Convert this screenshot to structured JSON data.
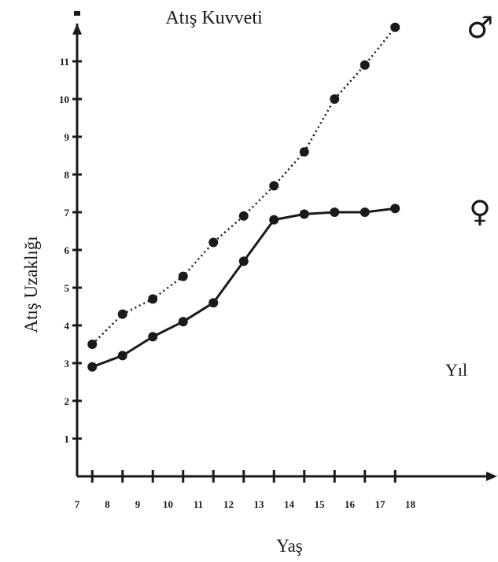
{
  "chart_data": {
    "type": "line",
    "title": "Atış Kuvveti",
    "xlabel": "Yaş",
    "ylabel": "Atış Uzaklığı",
    "unit_label": "Yıl",
    "x_ticks": [
      "7",
      "8",
      "9",
      "10",
      "11",
      "12",
      "13",
      "14",
      "15",
      "16",
      "17",
      "18"
    ],
    "y_ticks": [
      "1",
      "2",
      "3",
      "4",
      "5",
      "6",
      "7",
      "8",
      "9",
      "10",
      "11"
    ],
    "xlim": [
      7,
      18
    ],
    "ylim": [
      0,
      12
    ],
    "grid": false,
    "legend": "symbols at right end of lines",
    "series": [
      {
        "name": "♂",
        "style": "dotted",
        "x": [
          7.5,
          8.5,
          9.5,
          10.5,
          11.5,
          12.5,
          13.5,
          14.5,
          15.5,
          16.5,
          17.5
        ],
        "values": [
          3.5,
          4.3,
          4.7,
          5.3,
          6.2,
          6.9,
          7.7,
          8.6,
          10.0,
          10.9,
          11.9
        ]
      },
      {
        "name": "♀",
        "style": "solid",
        "x": [
          7.5,
          8.5,
          9.5,
          10.5,
          11.5,
          12.5,
          13.5,
          14.5,
          15.5,
          16.5,
          17.5
        ],
        "values": [
          2.9,
          3.2,
          3.7,
          4.1,
          4.6,
          5.7,
          6.8,
          6.95,
          7.0,
          7.0,
          7.1
        ]
      }
    ]
  },
  "colors": {
    "ink": "#1a1a1a",
    "background": "#ffffff"
  }
}
